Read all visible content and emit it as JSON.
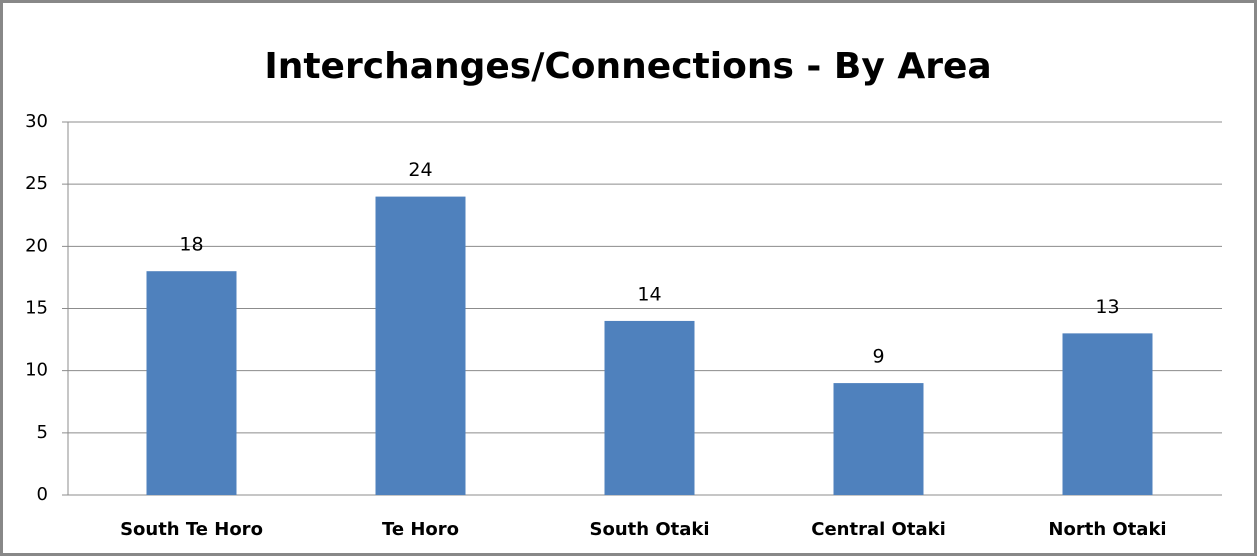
{
  "chart_data": {
    "type": "bar",
    "title": "Interchanges/Connections - By Area",
    "categories": [
      "South Te Horo",
      "Te Horo",
      "South Otaki",
      "Central Otaki",
      "North Otaki"
    ],
    "values": [
      18,
      24,
      14,
      9,
      13
    ],
    "color": "#4f81bd",
    "ylim": [
      0,
      30
    ],
    "yticks": [
      0,
      5,
      10,
      15,
      20,
      25,
      30
    ],
    "grid": true
  }
}
